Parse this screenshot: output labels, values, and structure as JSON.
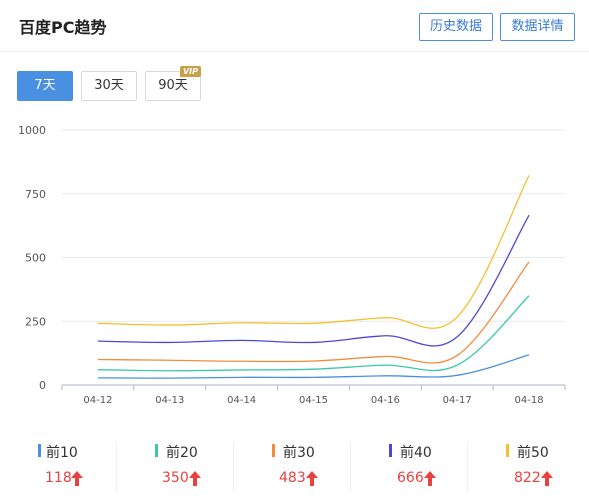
{
  "header": {
    "title": "百度PC趋势",
    "history_label": "历史数据",
    "detail_label": "数据详情"
  },
  "ranges": {
    "r7": "7天",
    "r30": "30天",
    "r90": "90天",
    "vip_badge": "VIP",
    "selected": "7天"
  },
  "colors": {
    "accent": "#4a90e2",
    "up": "#e8423e",
    "vip": "#c8a04a"
  },
  "chart_data": {
    "type": "line",
    "x": [
      "04-12",
      "04-13",
      "04-14",
      "04-15",
      "04-16",
      "04-17",
      "04-18"
    ],
    "ylim": [
      0,
      1000
    ],
    "yticks": [
      0,
      250,
      500,
      750,
      1000
    ],
    "grid": true,
    "series": [
      {
        "name": "前10",
        "color": "#4a90e2",
        "values": [
          28,
          27,
          30,
          30,
          36,
          38,
          118
        ]
      },
      {
        "name": "前20",
        "color": "#3cc9a5",
        "values": [
          60,
          56,
          59,
          62,
          78,
          78,
          350
        ]
      },
      {
        "name": "前30",
        "color": "#f28c3d",
        "values": [
          100,
          97,
          93,
          94,
          112,
          116,
          483
        ]
      },
      {
        "name": "前40",
        "color": "#4b48d6",
        "values": [
          172,
          167,
          175,
          167,
          193,
          189,
          666
        ]
      },
      {
        "name": "前50",
        "color": "#f2c12e",
        "values": [
          242,
          235,
          244,
          242,
          264,
          267,
          822
        ]
      }
    ]
  },
  "legend": [
    {
      "name": "前10",
      "value": "118",
      "color": "#4a90e2"
    },
    {
      "name": "前20",
      "value": "350",
      "color": "#3cc9a5"
    },
    {
      "name": "前30",
      "value": "483",
      "color": "#f28c3d"
    },
    {
      "name": "前40",
      "value": "666",
      "color": "#4b48d6"
    },
    {
      "name": "前50",
      "value": "822",
      "color": "#f2c12e"
    }
  ]
}
